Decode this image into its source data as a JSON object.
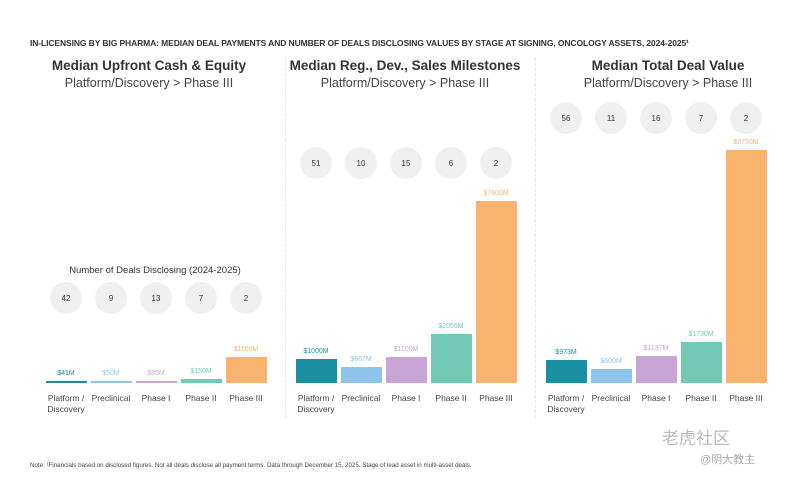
{
  "title": "IN-LICENSING BY BIG PHARMA: MEDIAN DEAL PAYMENTS AND NUMBER OF DEALS DISCLOSING VALUES BY STAGE AT SIGNING, ONCOLOGY ASSETS, 2024-2025¹",
  "deals_label": "Number of Deals Disclosing (2024-2025)",
  "note": "Note: ¹Financials based on disclosed figures. Not all deals disclose all payment terms. Data through December 15, 2025. Stage of lead asset in multi-asset deals.",
  "watermark": {
    "line1": "老虎社区",
    "line2": "@明大教主"
  },
  "colors": [
    "#1a8fa2",
    "#8ec4ea",
    "#c8a5d6",
    "#72c9b4",
    "#f8b46f"
  ],
  "chart_data": [
    {
      "type": "bar",
      "title": "Median Upfront Cash & Equity",
      "subtitle": "Platform/Discovery > Phase III",
      "categories": [
        "Platform / Discovery",
        "Preclinical",
        "Phase I",
        "Phase II",
        "Phase III"
      ],
      "values": [
        41,
        50,
        85,
        150,
        1100
      ],
      "value_labels": [
        "$41M",
        "$50M",
        "$85M",
        "$150M",
        "$1100M"
      ],
      "deals": [
        "42",
        "9",
        "13",
        "7",
        "2"
      ],
      "unit": "$M"
    },
    {
      "type": "bar",
      "title": "Median Reg., Dev., Sales Milestones",
      "subtitle": "Platform/Discovery > Phase III",
      "categories": [
        "Platform / Discovery",
        "Preclinical",
        "Phase I",
        "Phase II",
        "Phase III"
      ],
      "values": [
        1000,
        667,
        1100,
        2055,
        7600
      ],
      "value_labels": [
        "$1000M",
        "$667M",
        "$1100M",
        "$2055M",
        "$7600M"
      ],
      "deals": [
        "51",
        "10",
        "15",
        "6",
        "2"
      ],
      "unit": "$M"
    },
    {
      "type": "bar",
      "title": "Median Total Deal Value",
      "subtitle": "Platform/Discovery > Phase III",
      "categories": [
        "Platform / Discovery",
        "Preclinical",
        "Phase I",
        "Phase II",
        "Phase III"
      ],
      "values": [
        973,
        600,
        1137,
        1730,
        9750
      ],
      "value_labels": [
        "$973M",
        "$600M",
        "$1137M",
        "$1730M",
        "$9750M"
      ],
      "deals": [
        "56",
        "11",
        "16",
        "7",
        "2"
      ],
      "unit": "$M"
    }
  ]
}
